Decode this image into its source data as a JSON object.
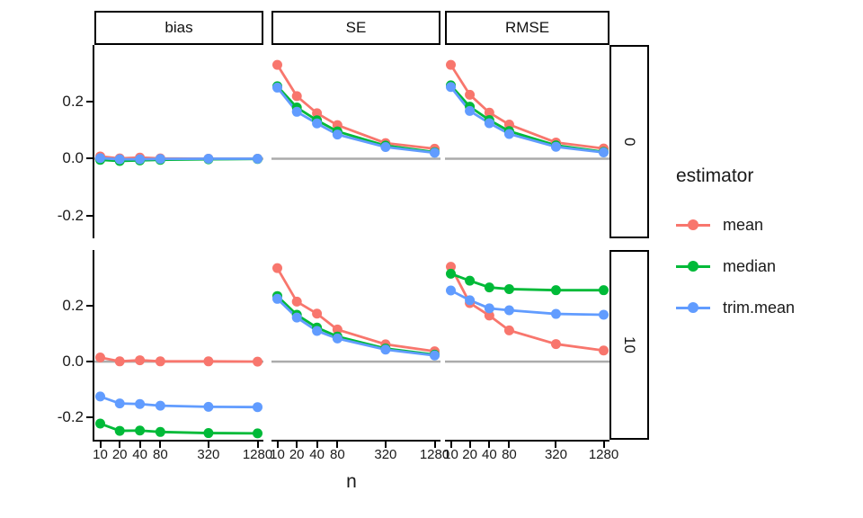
{
  "figure": {
    "col_facets": [
      "bias",
      "SE",
      "RMSE"
    ],
    "row_facets": [
      "0",
      "10"
    ],
    "x_axis": {
      "title": "n",
      "tick_labels": [
        "10",
        "20",
        "40",
        "80",
        "320",
        "1280"
      ]
    },
    "y_axis": {
      "tick_labels": [
        "0.2",
        "0.0",
        "-0.2"
      ],
      "tick_values": [
        0.2,
        0.0,
        -0.2
      ]
    },
    "legend": {
      "title": "estimator",
      "entries": [
        {
          "label": "mean",
          "color": "#F8766D"
        },
        {
          "label": "median",
          "color": "#00BA38"
        },
        {
          "label": "trim.mean",
          "color": "#619CFF"
        }
      ]
    },
    "colors": {
      "zero_line": "#ABABAB",
      "axis": "#000000"
    }
  },
  "chart_data": {
    "type": "line",
    "x": [
      10,
      20,
      40,
      80,
      320,
      1280
    ],
    "x_scale": "log",
    "xlabel": "n",
    "ylim": [
      -0.28,
      0.4
    ],
    "y_ticks": [
      0.2,
      0.0,
      -0.2
    ],
    "facet_cols": [
      "bias",
      "SE",
      "RMSE"
    ],
    "facet_rows": [
      "0",
      "10"
    ],
    "legend_position": "right",
    "grid": "off",
    "series_colors": {
      "mean": "#F8766D",
      "median": "#00BA38",
      "trim.mean": "#619CFF"
    },
    "panels": [
      {
        "row": "0",
        "col": "bias",
        "series": [
          {
            "name": "mean",
            "values": [
              0.008,
              0.001,
              0.004,
              0.001,
              0.0,
              0.0
            ]
          },
          {
            "name": "median",
            "values": [
              -0.004,
              -0.008,
              -0.006,
              -0.004,
              -0.002,
              -0.001
            ]
          },
          {
            "name": "trim.mean",
            "values": [
              0.002,
              -0.002,
              -0.002,
              -0.001,
              0.0,
              0.0
            ]
          }
        ]
      },
      {
        "row": "0",
        "col": "SE",
        "series": [
          {
            "name": "mean",
            "values": [
              0.33,
              0.22,
              0.16,
              0.118,
              0.055,
              0.035
            ]
          },
          {
            "name": "median",
            "values": [
              0.255,
              0.18,
              0.135,
              0.096,
              0.046,
              0.023
            ]
          },
          {
            "name": "trim.mean",
            "values": [
              0.25,
              0.165,
              0.124,
              0.085,
              0.041,
              0.021
            ]
          }
        ]
      },
      {
        "row": "0",
        "col": "RMSE",
        "series": [
          {
            "name": "mean",
            "values": [
              0.33,
              0.225,
              0.162,
              0.12,
              0.057,
              0.036
            ]
          },
          {
            "name": "median",
            "values": [
              0.258,
              0.183,
              0.136,
              0.097,
              0.047,
              0.024
            ]
          },
          {
            "name": "trim.mean",
            "values": [
              0.252,
              0.168,
              0.125,
              0.087,
              0.042,
              0.022
            ]
          }
        ]
      },
      {
        "row": "10",
        "col": "bias",
        "series": [
          {
            "name": "mean",
            "values": [
              0.015,
              0.001,
              0.005,
              0.001,
              0.001,
              0.0
            ]
          },
          {
            "name": "median",
            "values": [
              -0.222,
              -0.248,
              -0.247,
              -0.252,
              -0.256,
              -0.257
            ]
          },
          {
            "name": "trim.mean",
            "values": [
              -0.125,
              -0.15,
              -0.152,
              -0.158,
              -0.162,
              -0.163
            ]
          }
        ]
      },
      {
        "row": "10",
        "col": "SE",
        "series": [
          {
            "name": "mean",
            "values": [
              0.335,
              0.215,
              0.172,
              0.115,
              0.062,
              0.037
            ]
          },
          {
            "name": "median",
            "values": [
              0.235,
              0.168,
              0.122,
              0.09,
              0.047,
              0.025
            ]
          },
          {
            "name": "trim.mean",
            "values": [
              0.225,
              0.158,
              0.11,
              0.083,
              0.043,
              0.022
            ]
          }
        ]
      },
      {
        "row": "10",
        "col": "RMSE",
        "series": [
          {
            "name": "mean",
            "values": [
              0.34,
              0.21,
              0.165,
              0.112,
              0.063,
              0.04
            ]
          },
          {
            "name": "median",
            "values": [
              0.315,
              0.29,
              0.266,
              0.26,
              0.256,
              0.256
            ]
          },
          {
            "name": "trim.mean",
            "values": [
              0.255,
              0.22,
              0.191,
              0.184,
              0.171,
              0.168
            ]
          }
        ]
      }
    ]
  }
}
